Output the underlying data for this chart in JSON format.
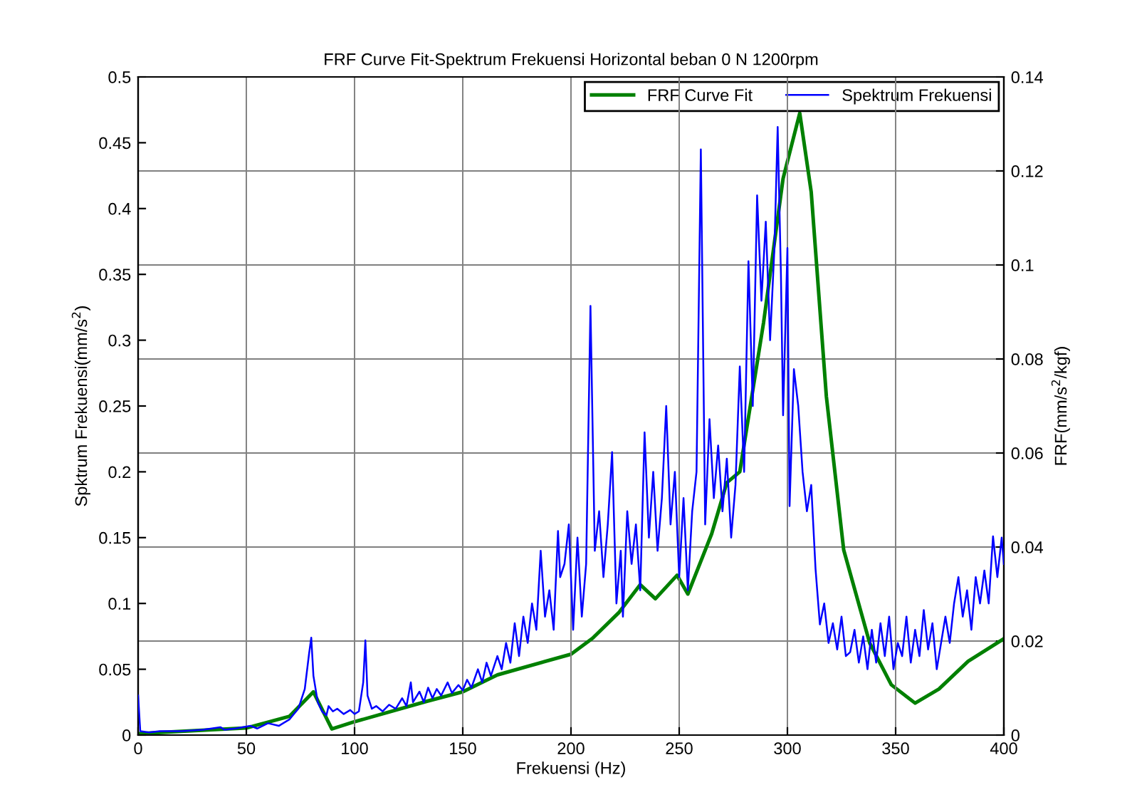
{
  "chart_data": {
    "type": "line",
    "title": "FRF Curve Fit-Spektrum Frekuensi Horizontal beban 0 N 1200rpm",
    "xlabel": "Frekuensi (Hz)",
    "ylabel": "Spktrum Frekuensi(mm/s$^{2}$)",
    "y2label": "FRF(mm/s$^{2}$/kgf)",
    "xlim": [
      0,
      400
    ],
    "xticks": [
      0,
      50,
      100,
      150,
      200,
      250,
      300,
      350,
      400
    ],
    "ylim": [
      0,
      0.5
    ],
    "yticks": [
      0,
      0.05,
      0.1,
      0.15,
      0.2,
      0.25,
      0.3,
      0.35,
      0.4,
      0.45,
      0.5
    ],
    "y2lim": [
      0,
      0.14
    ],
    "y2ticks": [
      0,
      0.02,
      0.04,
      0.06,
      0.08,
      0.1,
      0.12,
      0.14
    ],
    "grid": true,
    "legend": "top right",
    "line_style": "solid",
    "marker": "none",
    "series": [
      {
        "name": "FRF Curve Fit",
        "color": "#008000",
        "axis": "y2",
        "x": [
          0,
          20,
          50,
          70,
          81,
          89.5,
          99,
          133.5,
          150,
          166,
          200,
          210,
          222,
          232,
          239,
          249,
          254,
          265,
          272,
          278,
          289,
          298,
          305.7,
          311,
          318,
          326,
          338,
          348,
          359,
          370,
          383.5,
          400
        ],
        "values": [
          0.0003,
          0.0008,
          0.0015,
          0.004,
          0.0092,
          0.0013,
          0.0027,
          0.0072,
          0.0092,
          0.0128,
          0.0172,
          0.0206,
          0.026,
          0.032,
          0.029,
          0.034,
          0.03,
          0.0428,
          0.0537,
          0.056,
          0.0878,
          0.1184,
          0.1323,
          0.1155,
          0.072,
          0.0394,
          0.0196,
          0.0107,
          0.0068,
          0.0098,
          0.0157,
          0.0205
        ]
      },
      {
        "name": "Spektrum Frekuensi",
        "color": "#0000ff",
        "axis": "y",
        "x": [
          0,
          1,
          5,
          10,
          20,
          30,
          38,
          40,
          45,
          52,
          55,
          60,
          65,
          70,
          74,
          77,
          79,
          80,
          81,
          83,
          85,
          87,
          88,
          90,
          92,
          95,
          98,
          100,
          102,
          104,
          105,
          106,
          108,
          110,
          113,
          116,
          119,
          122,
          124,
          126,
          127,
          130,
          132,
          134,
          136,
          138,
          140,
          143,
          145,
          148,
          150,
          152,
          154,
          157,
          159,
          161,
          163,
          166,
          168,
          170,
          172,
          174,
          176,
          178,
          180,
          182,
          184,
          186,
          188,
          190,
          192,
          194,
          195,
          197,
          199,
          201,
          203,
          205,
          207,
          209,
          211,
          213,
          215,
          217,
          219,
          221,
          223,
          224,
          226,
          228,
          230,
          232,
          234,
          236,
          238,
          240,
          242,
          244,
          246,
          248,
          250,
          252,
          254,
          256,
          258,
          260,
          262,
          264,
          266,
          268,
          270,
          272,
          274,
          276,
          278,
          280,
          282,
          284,
          286,
          288,
          290,
          292,
          294,
          295.5,
          297,
          298,
          300,
          301,
          303,
          305,
          307,
          309,
          311,
          313,
          315,
          317,
          319,
          321,
          323,
          325,
          327,
          329,
          331,
          333,
          335,
          337,
          339,
          341,
          343,
          345,
          347,
          349,
          351,
          353,
          355,
          357,
          359,
          361,
          363,
          365,
          367,
          369,
          371,
          373,
          375,
          377,
          379,
          381,
          383,
          385,
          387,
          389,
          391,
          393,
          395,
          397,
          399,
          400
        ],
        "values": [
          0.03,
          0.003,
          0.002,
          0.003,
          0.003,
          0.004,
          0.006,
          0.004,
          0.005,
          0.007,
          0.005,
          0.009,
          0.007,
          0.012,
          0.02,
          0.035,
          0.062,
          0.074,
          0.045,
          0.025,
          0.018,
          0.015,
          0.022,
          0.018,
          0.02,
          0.016,
          0.019,
          0.016,
          0.018,
          0.04,
          0.072,
          0.03,
          0.02,
          0.022,
          0.018,
          0.023,
          0.02,
          0.028,
          0.022,
          0.04,
          0.025,
          0.033,
          0.025,
          0.036,
          0.028,
          0.035,
          0.03,
          0.04,
          0.032,
          0.038,
          0.034,
          0.042,
          0.036,
          0.05,
          0.04,
          0.055,
          0.045,
          0.06,
          0.05,
          0.07,
          0.055,
          0.085,
          0.06,
          0.09,
          0.07,
          0.1,
          0.08,
          0.14,
          0.09,
          0.11,
          0.08,
          0.155,
          0.12,
          0.13,
          0.16,
          0.08,
          0.15,
          0.09,
          0.13,
          0.326,
          0.14,
          0.17,
          0.12,
          0.16,
          0.215,
          0.1,
          0.14,
          0.09,
          0.17,
          0.13,
          0.16,
          0.11,
          0.23,
          0.15,
          0.2,
          0.14,
          0.18,
          0.25,
          0.16,
          0.2,
          0.12,
          0.18,
          0.11,
          0.17,
          0.2,
          0.445,
          0.16,
          0.24,
          0.18,
          0.22,
          0.17,
          0.21,
          0.15,
          0.19,
          0.28,
          0.2,
          0.36,
          0.25,
          0.41,
          0.33,
          0.39,
          0.3,
          0.37,
          0.462,
          0.35,
          0.243,
          0.37,
          0.174,
          0.278,
          0.25,
          0.2,
          0.17,
          0.19,
          0.126,
          0.084,
          0.1,
          0.07,
          0.085,
          0.065,
          0.09,
          0.06,
          0.063,
          0.08,
          0.055,
          0.075,
          0.05,
          0.08,
          0.055,
          0.085,
          0.06,
          0.09,
          0.05,
          0.07,
          0.06,
          0.09,
          0.055,
          0.08,
          0.06,
          0.095,
          0.065,
          0.085,
          0.05,
          0.07,
          0.09,
          0.07,
          0.1,
          0.12,
          0.09,
          0.11,
          0.08,
          0.12,
          0.1,
          0.125,
          0.1,
          0.151,
          0.12,
          0.15,
          0.13
        ]
      }
    ]
  }
}
